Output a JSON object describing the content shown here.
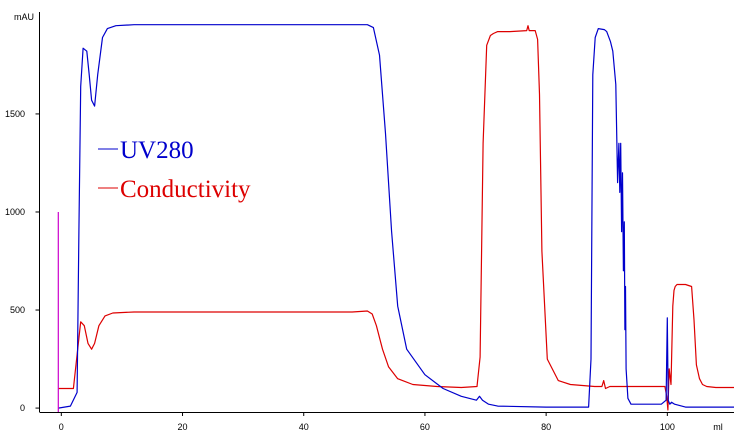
{
  "chart_data": {
    "type": "line",
    "xlabel": "ml",
    "ylabel": "mAU",
    "xlim": [
      -3.6,
      111
    ],
    "ylim": [
      -20,
      2030
    ],
    "x_ticks": [
      0,
      20,
      40,
      60,
      80,
      100
    ],
    "y_ticks": [
      0,
      500,
      1000,
      1500
    ],
    "grid": false,
    "legend": {
      "placement": "upper-left"
    },
    "series": [
      {
        "name": "UV280",
        "color": "#0000cc",
        "x": [
          -0.5,
          1.5,
          2.6,
          2.9,
          3.2,
          3.6,
          4.2,
          4.6,
          5.0,
          5.5,
          6.0,
          6.8,
          7.6,
          9.0,
          12.0,
          20.0,
          30.0,
          40.0,
          48.0,
          50.5,
          51.5,
          52.5,
          53.5,
          54.5,
          55.5,
          57.0,
          60.0,
          63.0,
          66.0,
          68.5,
          69.0,
          69.5,
          70.5,
          72.0,
          80.0,
          87.0,
          87.4,
          87.7,
          88.1,
          88.6,
          89.6,
          90.0,
          90.6,
          91.0,
          91.5,
          91.8,
          92.0,
          92.15,
          92.3,
          92.45,
          92.6,
          92.75,
          92.9,
          93.0,
          93.1,
          93.2,
          93.5,
          94.0,
          96.0,
          99.0,
          99.8,
          100.0,
          100.15,
          100.4,
          100.7,
          101.2,
          103.0,
          108.0,
          111.0
        ],
        "y": [
          0,
          10,
          80,
          900,
          1640,
          1835,
          1820,
          1700,
          1570,
          1540,
          1700,
          1890,
          1935,
          1950,
          1955,
          1955,
          1955,
          1955,
          1955,
          1955,
          1940,
          1800,
          1400,
          900,
          520,
          300,
          170,
          100,
          60,
          40,
          60,
          40,
          20,
          10,
          5,
          5,
          250,
          1700,
          1890,
          1935,
          1930,
          1920,
          1870,
          1820,
          1650,
          1150,
          1350,
          1100,
          1350,
          900,
          1200,
          700,
          950,
          400,
          620,
          200,
          50,
          20,
          20,
          20,
          40,
          460,
          40,
          20,
          30,
          20,
          5,
          5,
          5
        ]
      },
      {
        "name": "Conductivity",
        "color": "#dd0000",
        "x": [
          -0.5,
          2.0,
          2.7,
          3.2,
          3.8,
          4.4,
          5.0,
          5.5,
          6.2,
          7.2,
          8.5,
          12.0,
          20.0,
          30.0,
          40.0,
          48.0,
          50.5,
          51.3,
          52.0,
          53.0,
          54.0,
          55.5,
          58.0,
          62.0,
          66.0,
          68.6,
          69.1,
          69.6,
          70.2,
          70.8,
          71.3,
          72.0,
          74.0,
          76.8,
          77.0,
          77.2,
          78.2,
          78.6,
          78.9,
          79.3,
          80.2,
          82.0,
          84.0,
          88.0,
          89.2,
          89.5,
          89.8,
          90.5,
          93.0,
          99.6,
          99.9,
          100.1,
          100.3,
          100.6,
          100.9,
          101.1,
          101.3,
          101.6,
          102.0,
          103.0,
          104.0,
          104.4,
          104.8,
          105.3,
          105.8,
          106.5,
          108.0,
          111.0
        ],
        "y": [
          100,
          100,
          300,
          440,
          420,
          330,
          300,
          330,
          420,
          470,
          485,
          490,
          490,
          490,
          490,
          490,
          495,
          480,
          420,
          300,
          210,
          150,
          120,
          110,
          105,
          110,
          260,
          1350,
          1850,
          1900,
          1910,
          1920,
          1920,
          1925,
          1950,
          1925,
          1925,
          1880,
          1600,
          800,
          250,
          140,
          120,
          110,
          110,
          140,
          100,
          110,
          110,
          110,
          60,
          -10,
          200,
          120,
          520,
          600,
          620,
          630,
          630,
          630,
          620,
          450,
          220,
          150,
          120,
          110,
          105,
          105
        ]
      },
      {
        "name": "",
        "color": "#cc00cc",
        "x": [
          -0.5,
          -0.5
        ],
        "y": [
          -20,
          1000
        ]
      }
    ]
  }
}
